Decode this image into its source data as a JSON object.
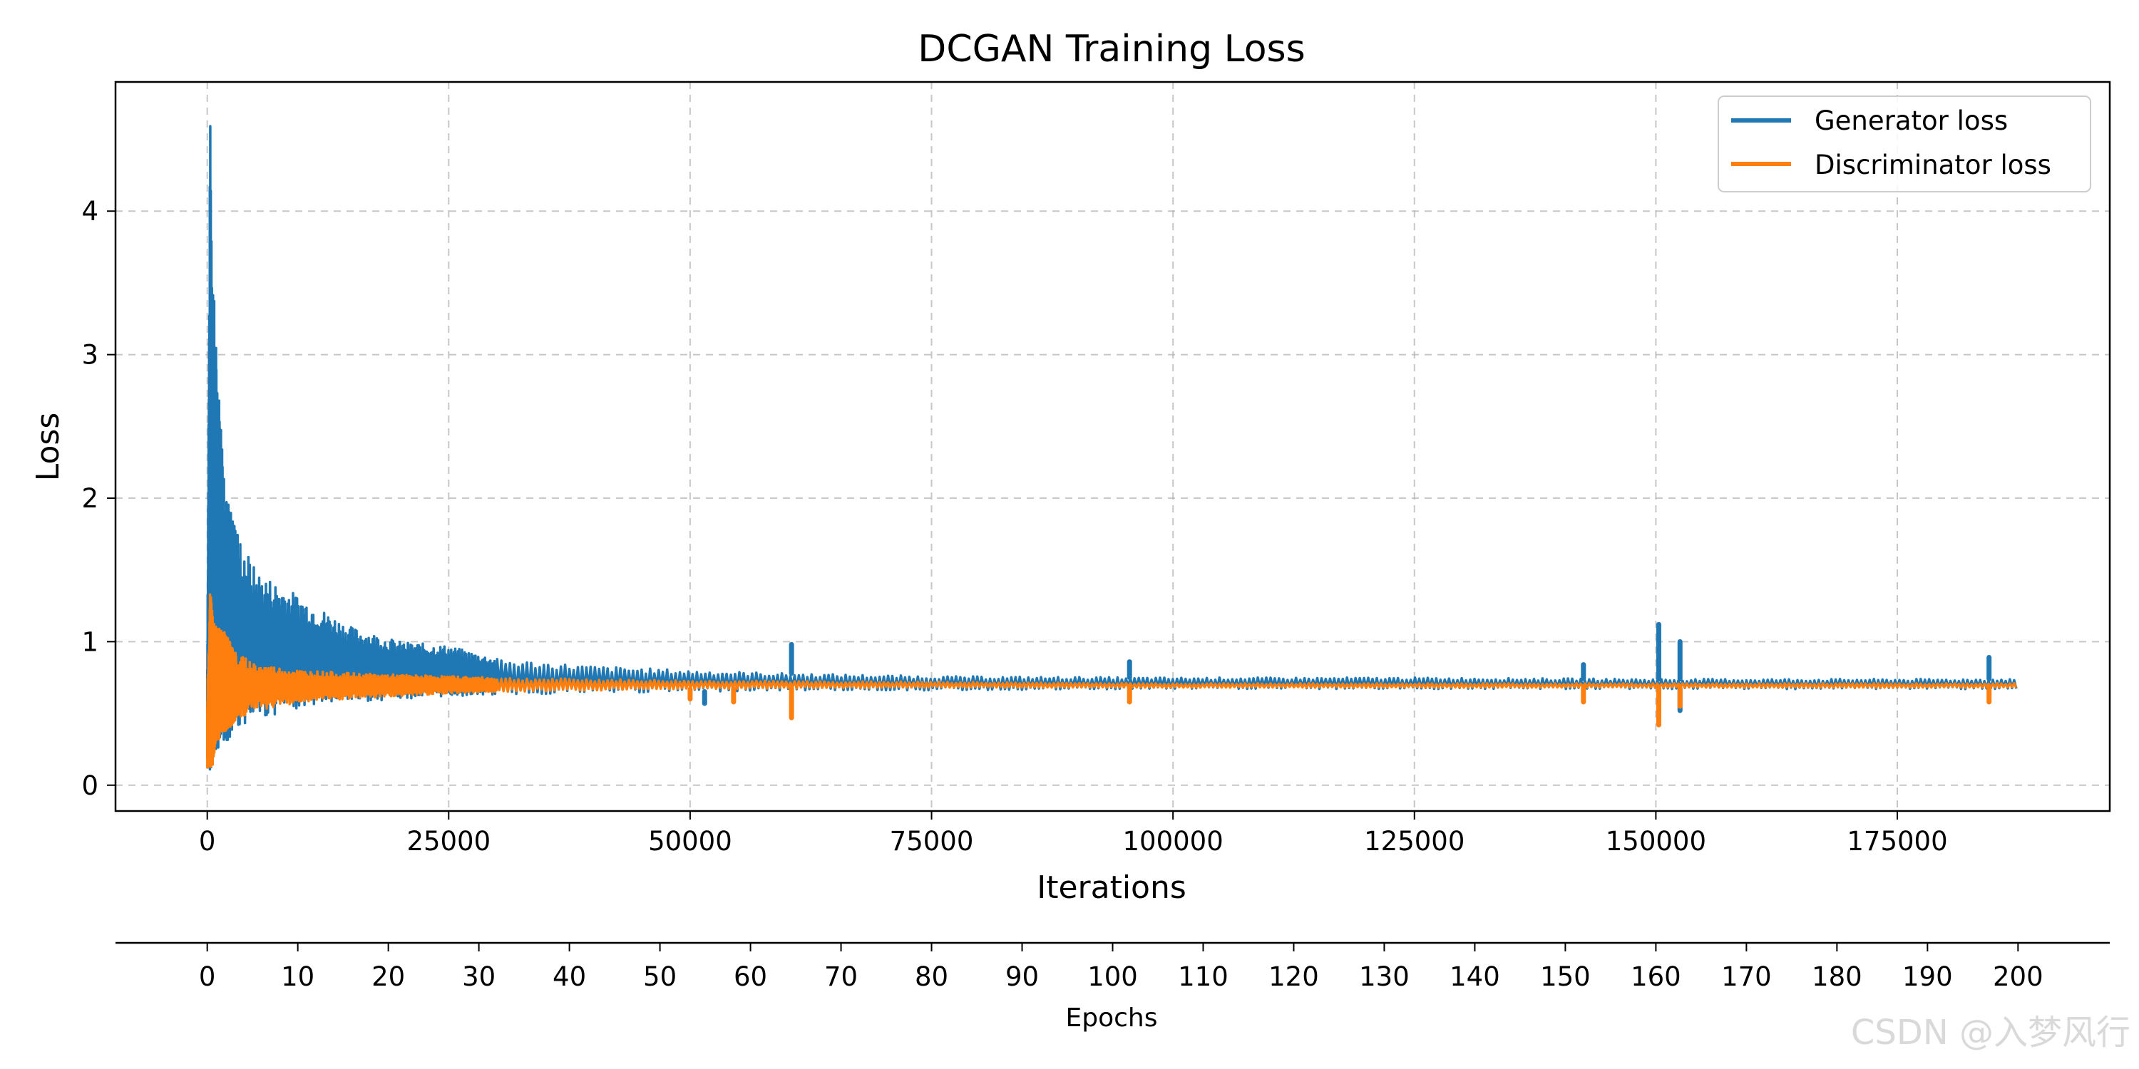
{
  "chart_data": {
    "type": "line",
    "title": "DCGAN Training Loss",
    "xlabel": "Iterations",
    "ylabel": "Loss",
    "xlim": [
      -9500,
      197000
    ],
    "ylim": [
      -0.18,
      4.9
    ],
    "x_ticks": [
      0,
      25000,
      50000,
      75000,
      100000,
      125000,
      150000,
      175000
    ],
    "y_ticks": [
      0,
      1,
      2,
      3,
      4
    ],
    "grid": true,
    "legend_position": "top-right",
    "series": [
      {
        "name": "Generator loss",
        "color": "#1f77b4",
        "envelope_x": [
          0,
          300,
          600,
          1000,
          2000,
          3000,
          5000,
          7500,
          10000,
          15000,
          20000,
          25000,
          30000,
          40000,
          50000,
          60000,
          75000,
          100000,
          125000,
          150000,
          175000,
          187500
        ],
        "envelope_upper": [
          0.9,
          4.68,
          3.6,
          2.95,
          2.0,
          1.8,
          1.5,
          1.4,
          1.3,
          1.1,
          1.0,
          0.97,
          0.88,
          0.83,
          0.8,
          0.78,
          0.76,
          0.75,
          0.75,
          0.74,
          0.74,
          0.74
        ],
        "envelope_lower": [
          0.1,
          0.08,
          0.18,
          0.25,
          0.3,
          0.4,
          0.45,
          0.5,
          0.55,
          0.58,
          0.6,
          0.62,
          0.63,
          0.64,
          0.65,
          0.66,
          0.66,
          0.67,
          0.67,
          0.67,
          0.67,
          0.67
        ],
        "spikes": [
          [
            60500,
            0.98
          ],
          [
            95500,
            0.86
          ],
          [
            142500,
            0.84
          ],
          [
            150300,
            1.12
          ],
          [
            152500,
            1.0
          ],
          [
            184500,
            0.89
          ]
        ],
        "dips": [
          [
            51500,
            0.57
          ],
          [
            150300,
            0.48
          ],
          [
            152500,
            0.52
          ]
        ]
      },
      {
        "name": "Discriminator loss",
        "color": "#ff7f0e",
        "envelope_x": [
          0,
          300,
          600,
          1000,
          2000,
          3000,
          5000,
          7500,
          10000,
          15000,
          20000,
          25000,
          30000,
          40000,
          50000,
          75000,
          100000,
          125000,
          150000,
          175000,
          187500
        ],
        "envelope_upper": [
          0.62,
          1.38,
          1.15,
          1.12,
          1.05,
          0.92,
          0.85,
          0.82,
          0.8,
          0.78,
          0.77,
          0.76,
          0.75,
          0.74,
          0.73,
          0.72,
          0.71,
          0.71,
          0.71,
          0.71,
          0.71
        ],
        "envelope_lower": [
          0.05,
          0.04,
          0.15,
          0.3,
          0.38,
          0.45,
          0.52,
          0.55,
          0.58,
          0.6,
          0.62,
          0.64,
          0.65,
          0.66,
          0.67,
          0.68,
          0.68,
          0.68,
          0.68,
          0.68,
          0.68
        ],
        "spikes": [],
        "dips": [
          [
            50000,
            0.6
          ],
          [
            54500,
            0.58
          ],
          [
            60500,
            0.47
          ],
          [
            95500,
            0.58
          ],
          [
            142500,
            0.58
          ],
          [
            150300,
            0.42
          ],
          [
            152500,
            0.55
          ],
          [
            184500,
            0.58
          ]
        ]
      }
    ],
    "secondary_axis": {
      "label": "Epochs",
      "ticks": [
        0,
        10,
        20,
        30,
        40,
        50,
        60,
        70,
        80,
        90,
        100,
        110,
        120,
        130,
        140,
        150,
        160,
        170,
        180,
        190,
        200
      ],
      "iterations_per_epoch": 937.5
    }
  },
  "watermark": "CSDN @入梦风行"
}
